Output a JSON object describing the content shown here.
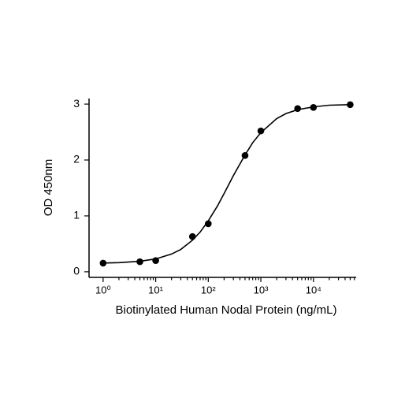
{
  "chart_data": {
    "type": "scatter",
    "x_label": "Biotinylated Human Nodal Protein (ng/mL)",
    "y_label": "OD 450nm",
    "x_scale": "log",
    "color": "#000000",
    "xlim": [
      0.54,
      65000
    ],
    "ylim": [
      -0.1,
      3.1
    ],
    "xticks": [
      {
        "value": 1,
        "label": "10⁰"
      },
      {
        "value": 10,
        "label": "10¹"
      },
      {
        "value": 100,
        "label": "10²"
      },
      {
        "value": 1000,
        "label": "10³"
      },
      {
        "value": 10000,
        "label": "10⁴"
      }
    ],
    "xminorticks": [
      2,
      3,
      4,
      5,
      6,
      7,
      8,
      9,
      20,
      30,
      40,
      50,
      60,
      70,
      80,
      90,
      200,
      300,
      400,
      500,
      600,
      700,
      800,
      900,
      2000,
      3000,
      4000,
      5000,
      6000,
      7000,
      8000,
      9000,
      20000,
      30000,
      40000,
      50000,
      60000
    ],
    "yticks": [
      0,
      1,
      2,
      3
    ],
    "points": {
      "x": [
        1,
        5,
        10,
        50,
        100,
        500,
        1000,
        5000,
        10000,
        50000
      ],
      "values": [
        0.155,
        0.18,
        0.2,
        0.63,
        0.86,
        2.08,
        2.52,
        2.92,
        2.94,
        2.99
      ]
    },
    "curve": {
      "x": [
        1,
        2,
        5,
        10,
        20,
        30,
        50,
        70,
        100,
        150,
        200,
        300,
        500,
        700,
        1000,
        2000,
        3000,
        5000,
        10000,
        20000,
        50000
      ],
      "values": [
        0.157,
        0.164,
        0.188,
        0.23,
        0.317,
        0.4,
        0.565,
        0.71,
        0.91,
        1.18,
        1.4,
        1.72,
        2.09,
        2.31,
        2.49,
        2.74,
        2.83,
        2.9,
        2.95,
        2.98,
        2.99
      ]
    }
  }
}
